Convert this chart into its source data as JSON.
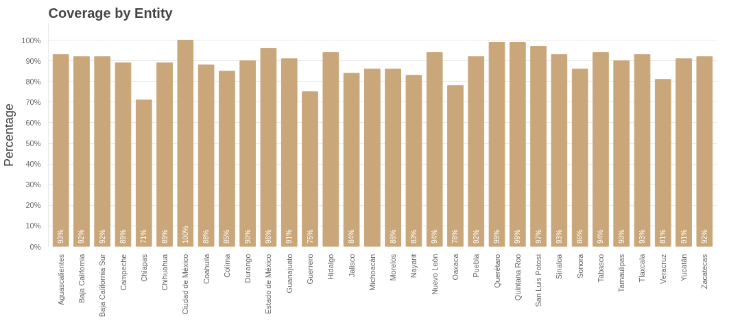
{
  "chart_data": {
    "type": "bar",
    "title": "Coverage by Entity",
    "ylabel": "Percentage",
    "categories": [
      "Aguascalientes",
      "Baja California",
      "Baja California Sur",
      "Campeche",
      "Chiapas",
      "Chihuahua",
      "Ciudad de México",
      "Coahuila",
      "Colima",
      "Durango",
      "Estado de México",
      "Guanajuato",
      "Guerrero",
      "Hidalgo",
      "Jalisco",
      "Michoacán",
      "Morelos",
      "Nayarit",
      "Nuevo León",
      "Oaxaca",
      "Puebla",
      "Querétaro",
      "Quintana Roo",
      "San Luis Potosí",
      "Sinaloa",
      "Sonora",
      "Tabasco",
      "Tamaulipas",
      "Tlaxcala",
      "Veracruz",
      "Yucatán",
      "Zacatecas"
    ],
    "values": [
      93,
      92,
      92,
      89,
      71,
      89,
      100,
      88,
      85,
      90,
      96,
      91,
      75,
      94,
      84,
      86,
      86,
      83,
      94,
      78,
      92,
      99,
      99,
      97,
      93,
      86,
      94,
      90,
      93,
      81,
      91,
      92
    ],
    "value_labels": [
      "93%",
      "92%",
      "92%",
      "89%",
      "71%",
      "89%",
      "100%",
      "88%",
      "85%",
      "90%",
      "96%",
      "91%",
      "75%",
      null,
      "84%",
      null,
      "86%",
      "83%",
      "94%",
      "78%",
      "92%",
      "99%",
      "99%",
      "97%",
      "93%",
      "86%",
      "94%",
      "90%",
      "93%",
      "81%",
      "91%",
      "92%"
    ],
    "color": "#c9a77a",
    "ylim": [
      0,
      108
    ],
    "yticks": [
      {
        "value": 0,
        "label": "0%"
      },
      {
        "value": 10,
        "label": "10%"
      },
      {
        "value": 20,
        "label": "20%"
      },
      {
        "value": 30,
        "label": "30%"
      },
      {
        "value": 40,
        "label": "40%"
      },
      {
        "value": 50,
        "label": "50%"
      },
      {
        "value": 60,
        "label": "60%"
      },
      {
        "value": 70,
        "label": "70%"
      },
      {
        "value": 80,
        "label": "80%"
      },
      {
        "value": 90,
        "label": "90%"
      },
      {
        "value": 100,
        "label": "100%"
      }
    ],
    "grid": "y"
  }
}
